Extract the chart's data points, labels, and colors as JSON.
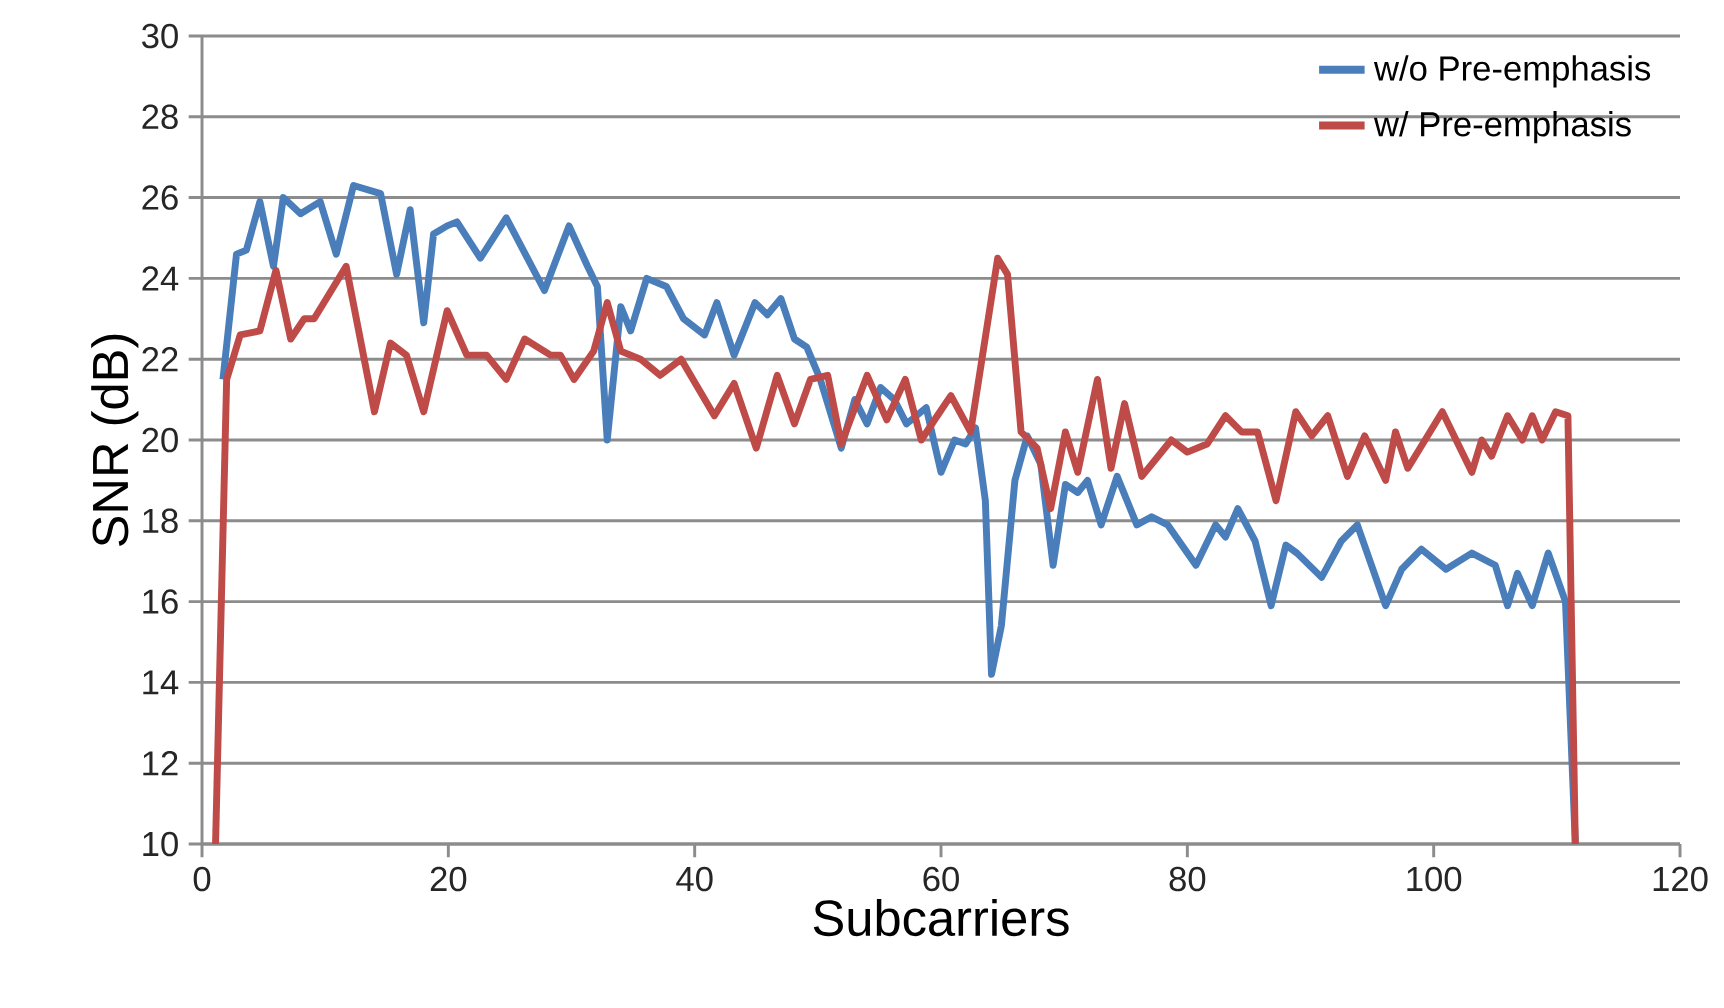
{
  "chart_data": {
    "type": "line",
    "xlabel": "Subcarriers",
    "ylabel": "SNR (dB)",
    "xlim": [
      0,
      120
    ],
    "ylim": [
      10,
      30
    ],
    "xticks": [
      0,
      20,
      40,
      60,
      80,
      100,
      120
    ],
    "yticks": [
      10,
      12,
      14,
      16,
      18,
      20,
      22,
      24,
      26,
      28,
      30
    ],
    "grid": "y",
    "legend": "top right",
    "marker": "none",
    "line_style": "solid",
    "series": [
      {
        "name": "w/o Pre-emphasis",
        "color": "#4a7ebb",
        "x": [
          1.7,
          2.8,
          3.6,
          4.7,
          5.8,
          6.6,
          8.0,
          9.6,
          10.9,
          12.3,
          14.5,
          15.8,
          16.9,
          18.0,
          18.8,
          19.9,
          20.7,
          22.6,
          24.7,
          27.8,
          29.8,
          31.3,
          32.1,
          32.9,
          34.0,
          34.8,
          36.1,
          37.7,
          39.1,
          40.8,
          41.8,
          43.2,
          44.9,
          45.9,
          47.0,
          48.1,
          49.1,
          50.2,
          51.9,
          53.0,
          54.0,
          55.1,
          56.2,
          57.2,
          58.8,
          60.0,
          61.1,
          62.0,
          62.8,
          63.6,
          64.1,
          64.9,
          66.0,
          67.0,
          68.1,
          69.1,
          70.1,
          71.1,
          71.9,
          73.0,
          74.3,
          75.9,
          77.1,
          78.4,
          80.7,
          82.3,
          83.1,
          84.1,
          85.5,
          86.8,
          88.0,
          88.9,
          90.9,
          92.5,
          93.8,
          96.1,
          97.4,
          99.0,
          101.0,
          103.1,
          105.0,
          106.0,
          106.8,
          108.0,
          109.3,
          110.7,
          111.5
        ],
        "values": [
          21.5,
          24.6,
          24.7,
          25.9,
          24.3,
          26.0,
          25.6,
          25.9,
          24.6,
          26.3,
          26.1,
          24.1,
          25.7,
          22.9,
          25.1,
          25.3,
          25.4,
          24.5,
          25.5,
          23.7,
          25.3,
          24.3,
          23.8,
          20.0,
          23.3,
          22.7,
          24.0,
          23.8,
          23.0,
          22.6,
          23.4,
          22.1,
          23.4,
          23.1,
          23.5,
          22.5,
          22.3,
          21.5,
          19.8,
          21.0,
          20.4,
          21.3,
          21.0,
          20.4,
          20.8,
          19.2,
          20.0,
          19.9,
          20.3,
          18.5,
          14.2,
          15.4,
          19.0,
          20.1,
          19.4,
          16.9,
          18.9,
          18.7,
          19.0,
          17.9,
          19.1,
          17.9,
          18.1,
          17.9,
          16.9,
          17.9,
          17.6,
          18.3,
          17.5,
          15.9,
          17.4,
          17.2,
          16.6,
          17.5,
          17.9,
          15.9,
          16.8,
          17.3,
          16.8,
          17.2,
          16.9,
          15.9,
          16.7,
          15.9,
          17.2,
          16.0,
          10.0
        ]
      },
      {
        "name": "w/ Pre-emphasis",
        "color": "#be4b48",
        "x": [
          1.1,
          2.0,
          3.1,
          4.7,
          6.0,
          7.2,
          8.3,
          9.1,
          10.7,
          11.7,
          14.0,
          15.3,
          16.6,
          18.0,
          19.9,
          21.5,
          23.1,
          24.7,
          26.2,
          28.3,
          29.1,
          30.2,
          31.8,
          32.9,
          34.0,
          35.6,
          37.2,
          38.9,
          41.6,
          43.2,
          45.0,
          46.7,
          48.1,
          49.4,
          50.8,
          51.9,
          54.0,
          55.6,
          57.1,
          58.4,
          59.7,
          60.8,
          62.4,
          64.6,
          65.4,
          66.5,
          67.8,
          68.9,
          70.1,
          71.1,
          72.7,
          73.8,
          74.9,
          76.3,
          78.7,
          80.0,
          81.6,
          83.1,
          84.4,
          85.7,
          87.2,
          88.8,
          90.1,
          91.4,
          93.0,
          94.4,
          96.1,
          96.9,
          97.9,
          100.7,
          103.1,
          103.9,
          104.7,
          106.0,
          107.2,
          108.0,
          108.8,
          109.9,
          110.9,
          111.5
        ],
        "values": [
          10.0,
          21.5,
          22.6,
          22.7,
          24.2,
          22.5,
          23.0,
          23.0,
          23.8,
          24.3,
          20.7,
          22.4,
          22.1,
          20.7,
          23.2,
          22.1,
          22.1,
          21.5,
          22.5,
          22.1,
          22.1,
          21.5,
          22.2,
          23.4,
          22.2,
          22.0,
          21.6,
          22.0,
          20.6,
          21.4,
          19.8,
          21.6,
          20.4,
          21.5,
          21.6,
          19.9,
          21.6,
          20.5,
          21.5,
          20.0,
          20.6,
          21.1,
          20.2,
          24.5,
          24.1,
          20.2,
          19.8,
          18.3,
          20.2,
          19.2,
          21.5,
          19.3,
          20.9,
          19.1,
          20.0,
          19.7,
          19.9,
          20.6,
          20.2,
          20.2,
          18.5,
          20.7,
          20.1,
          20.6,
          19.1,
          20.1,
          19.0,
          20.2,
          19.3,
          20.7,
          19.2,
          20.0,
          19.6,
          20.6,
          20.0,
          20.6,
          20.0,
          20.7,
          20.6,
          10.0
        ]
      }
    ]
  }
}
